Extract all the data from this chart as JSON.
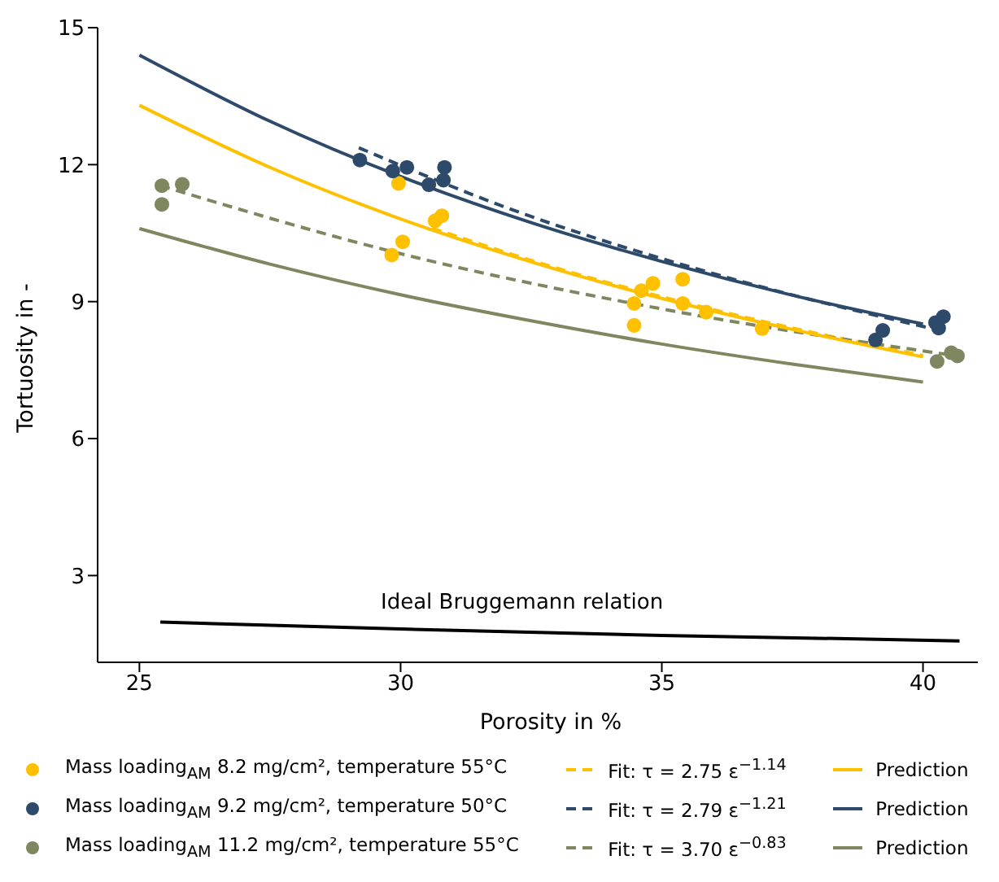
{
  "chart_data": {
    "type": "scatter",
    "xlabel": "Porosity in %",
    "ylabel": "Tortuosity in -",
    "xlim": [
      24.2,
      41.05
    ],
    "ylim": [
      1.1,
      15
    ],
    "xticks": [
      25,
      30,
      35,
      40
    ],
    "yticks": [
      3,
      6,
      9,
      12,
      15
    ],
    "grid": false,
    "legend": "bottom",
    "marker": "circle",
    "annotations": [
      "Ideal Bruggemann relation"
    ],
    "series": [
      {
        "name": "Mass loading$_{AM}$ 8.2 mg/cm², temperature 55°C",
        "color": "#ffc000",
        "x": [
          29.96,
          29.83,
          30.04,
          30.66,
          30.79,
          34.47,
          34.47,
          34.61,
          34.83,
          35.4,
          35.4,
          35.85,
          36.92
        ],
        "values": [
          11.59,
          10.02,
          10.31,
          10.77,
          10.88,
          8.48,
          8.96,
          9.24,
          9.4,
          9.49,
          8.96,
          8.77,
          8.41
        ]
      },
      {
        "name": "Mass loading$_{AM}$ 9.2 mg/cm², temperature 50°C",
        "color": "#2e4a6b",
        "x": [
          29.22,
          29.85,
          30.12,
          30.54,
          30.84,
          30.82,
          39.09,
          39.23,
          40.24,
          40.39,
          40.3
        ],
        "values": [
          12.1,
          11.86,
          11.94,
          11.56,
          11.94,
          11.66,
          8.16,
          8.37,
          8.54,
          8.67,
          8.42
        ]
      },
      {
        "name": "Mass loading$_{AM}$ 11.2 mg/cm², temperature 55°C",
        "color": "#7f8760",
        "x": [
          25.43,
          25.82,
          25.43,
          40.27,
          40.54,
          40.66
        ],
        "values": [
          11.54,
          11.57,
          11.13,
          7.69,
          7.88,
          7.81
        ]
      },
      {
        "name": "Fit: τ = 2.75 ε$^{−1.14}$",
        "type": "line",
        "marker": "none",
        "line_style": "dashed",
        "color": "#ffc000",
        "x": [
          30.6,
          33,
          36,
          40
        ],
        "values": [
          10.61,
          9.73,
          8.82,
          7.82
        ]
      },
      {
        "name": "Fit: τ = 2.79 ε$^{−1.21}$",
        "type": "line",
        "marker": "none",
        "line_style": "dashed",
        "color": "#2e4a6b",
        "x": [
          29.2,
          32,
          36,
          40.4
        ],
        "values": [
          12.37,
          11.07,
          9.61,
          8.35
        ]
      },
      {
        "name": "Fit: τ = 3.70 ε$^{−0.83}$",
        "type": "line",
        "marker": "none",
        "line_style": "dashed",
        "color": "#7f8760",
        "x": [
          25.4,
          30,
          35,
          40.6
        ],
        "values": [
          11.54,
          10.05,
          8.84,
          7.82
        ]
      },
      {
        "name": "Prediction",
        "type": "line",
        "marker": "none",
        "line_style": "solid",
        "color": "#ffc000",
        "x": [
          25,
          27.5,
          30,
          32.5,
          35,
          37.5,
          40
        ],
        "values": [
          13.3,
          11.94,
          10.81,
          9.87,
          9.07,
          8.39,
          7.79
        ]
      },
      {
        "name": "Prediction",
        "type": "line",
        "marker": "none",
        "line_style": "solid",
        "color": "#2e4a6b",
        "x": [
          25,
          27.5,
          30,
          32.5,
          35,
          37.5,
          40
        ],
        "values": [
          14.4,
          12.95,
          11.74,
          10.73,
          9.88,
          9.14,
          8.51
        ]
      },
      {
        "name": "Prediction",
        "type": "line",
        "marker": "none",
        "line_style": "solid",
        "color": "#7f8760",
        "x": [
          25,
          27.5,
          30,
          32.5,
          35,
          37.5,
          40
        ],
        "values": [
          10.6,
          9.82,
          9.15,
          8.58,
          8.07,
          7.63,
          7.24
        ]
      },
      {
        "type": "line",
        "marker": "none",
        "line_style": "solid",
        "color": "#000000",
        "x": [
          25.4,
          30,
          35,
          40.7
        ],
        "values": [
          1.98,
          1.83,
          1.69,
          1.57
        ]
      }
    ]
  }
}
